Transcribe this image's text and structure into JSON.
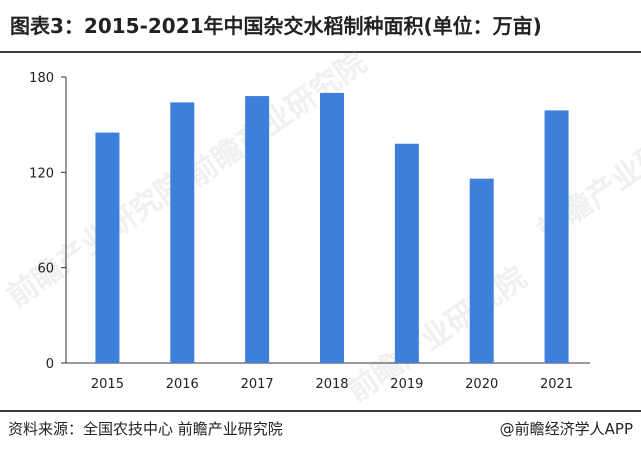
{
  "title": "图表3：2015-2021年中国杂交水稻制种面积(单位：万亩)",
  "source": "资料来源：全国农技中心 前瞻产业研究院",
  "brand": "@前瞻经济学人APP",
  "watermark": "前瞻产业研究院",
  "colors": {
    "bar": "#3f7fdc",
    "axis": "#333333",
    "text": "#222222"
  },
  "chart_data": {
    "type": "bar",
    "categories": [
      "2015",
      "2016",
      "2017",
      "2018",
      "2019",
      "2020",
      "2021"
    ],
    "values": [
      145,
      164,
      168,
      170,
      138,
      116,
      159
    ],
    "title": "图表3：2015-2021年中国杂交水稻制种面积(单位：万亩)",
    "xlabel": "",
    "ylabel": "",
    "ylim": [
      0,
      180
    ],
    "yticks": [
      0,
      60,
      120,
      180
    ],
    "grid": false,
    "legend": "none"
  }
}
